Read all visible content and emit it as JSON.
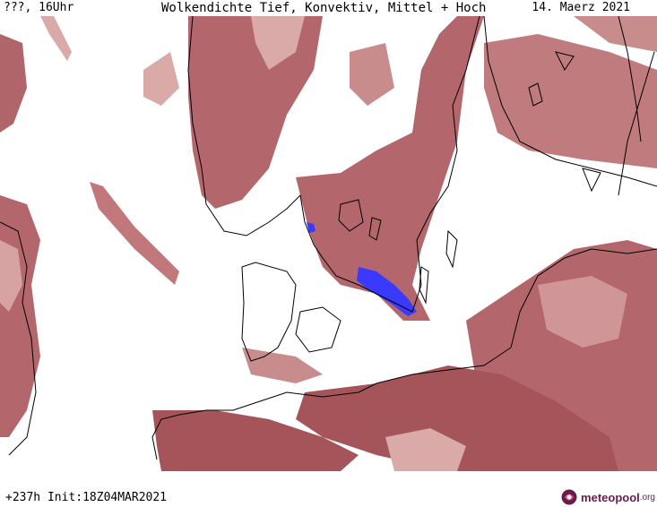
{
  "header": {
    "left": "???, 16Uhr",
    "title": "Wolkendichte  Tief, Konvektiv, Mittel + Hoch",
    "date": "14. Maerz 2021"
  },
  "footer": {
    "forecast": "+237h Init:18Z04MAR2021",
    "brand_name": "meteopool",
    "brand_tld": ".org"
  },
  "colors": {
    "cloud_dark": "#a5545a",
    "cloud_mid": "#c07b7e",
    "cloud_light": "#d9aaa8",
    "precip_blue": "#3a3aff",
    "brand": "#6a1b4d"
  }
}
